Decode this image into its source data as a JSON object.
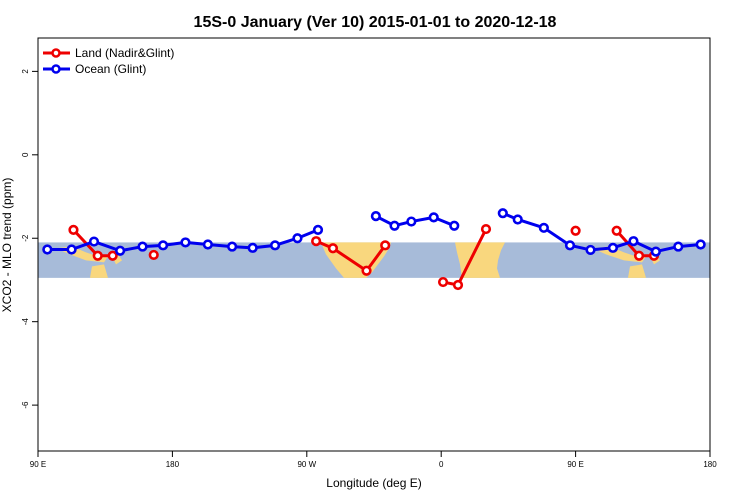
{
  "chart_data": {
    "type": "line",
    "title": "15S-0 January (Ver 10)   2015-01-01 to 2020-12-18",
    "xlabel": "Longitude (deg E)",
    "ylabel": "XCO2 - MLO trend (ppm)",
    "xlim": [
      90,
      450
    ],
    "ylim": [
      -7.1,
      2.8
    ],
    "x_ticks": [
      {
        "value": 90,
        "label": "90 E"
      },
      {
        "value": 162,
        "label": "180"
      },
      {
        "value": 234,
        "label": "90 W"
      },
      {
        "value": 306,
        "label": "0"
      },
      {
        "value": 378,
        "label": "90 E"
      },
      {
        "value": 450,
        "label": "180"
      }
    ],
    "y_ticks": [
      {
        "value": 2,
        "label": "2"
      },
      {
        "value": 0,
        "label": "0"
      },
      {
        "value": -2,
        "label": "-2"
      },
      {
        "value": -4,
        "label": "-4"
      },
      {
        "value": -6,
        "label": "-6"
      }
    ],
    "band": {
      "ymin": -2.95,
      "ymax": -2.1,
      "color": "#a7bbd9",
      "land_color": "#f9d77e"
    },
    "legend": {
      "position": "top-left"
    },
    "series": [
      {
        "name": "Land (Nadir&Glint)",
        "color": "#ee0000",
        "segments": [
          [
            [
              109,
              -1.8
            ],
            [
              122,
              -2.42
            ],
            [
              130,
              -2.42
            ]
          ],
          [
            [
              152,
              -2.4
            ]
          ],
          [
            [
              239,
              -2.07
            ],
            [
              248,
              -2.24
            ],
            [
              266,
              -2.78
            ],
            [
              276,
              -2.17
            ]
          ],
          [
            [
              307,
              -3.05
            ],
            [
              315,
              -3.12
            ],
            [
              330,
              -1.78
            ]
          ],
          [
            [
              378,
              -1.82
            ]
          ],
          [
            [
              400,
              -1.82
            ],
            [
              412,
              -2.42
            ],
            [
              420,
              -2.42
            ]
          ]
        ]
      },
      {
        "name": "Ocean (Glint)",
        "color": "#0000ee",
        "segments": [
          [
            [
              95,
              -2.27
            ],
            [
              108,
              -2.27
            ],
            [
              120,
              -2.08
            ],
            [
              134,
              -2.3
            ],
            [
              146,
              -2.2
            ],
            [
              157,
              -2.17
            ],
            [
              169,
              -2.1
            ],
            [
              181,
              -2.15
            ],
            [
              194,
              -2.2
            ],
            [
              205,
              -2.23
            ],
            [
              217,
              -2.17
            ],
            [
              229,
              -2.0
            ],
            [
              240,
              -1.8
            ]
          ],
          [
            [
              271,
              -1.47
            ],
            [
              281,
              -1.7
            ],
            [
              290,
              -1.6
            ],
            [
              302,
              -1.5
            ],
            [
              313,
              -1.7
            ]
          ],
          [
            [
              339,
              -1.4
            ],
            [
              347,
              -1.55
            ],
            [
              361,
              -1.75
            ],
            [
              375,
              -2.17
            ],
            [
              386,
              -2.28
            ],
            [
              398,
              -2.23
            ],
            [
              409,
              -2.07
            ],
            [
              421,
              -2.32
            ],
            [
              433,
              -2.2
            ],
            [
              445,
              -2.15
            ]
          ]
        ]
      }
    ]
  }
}
